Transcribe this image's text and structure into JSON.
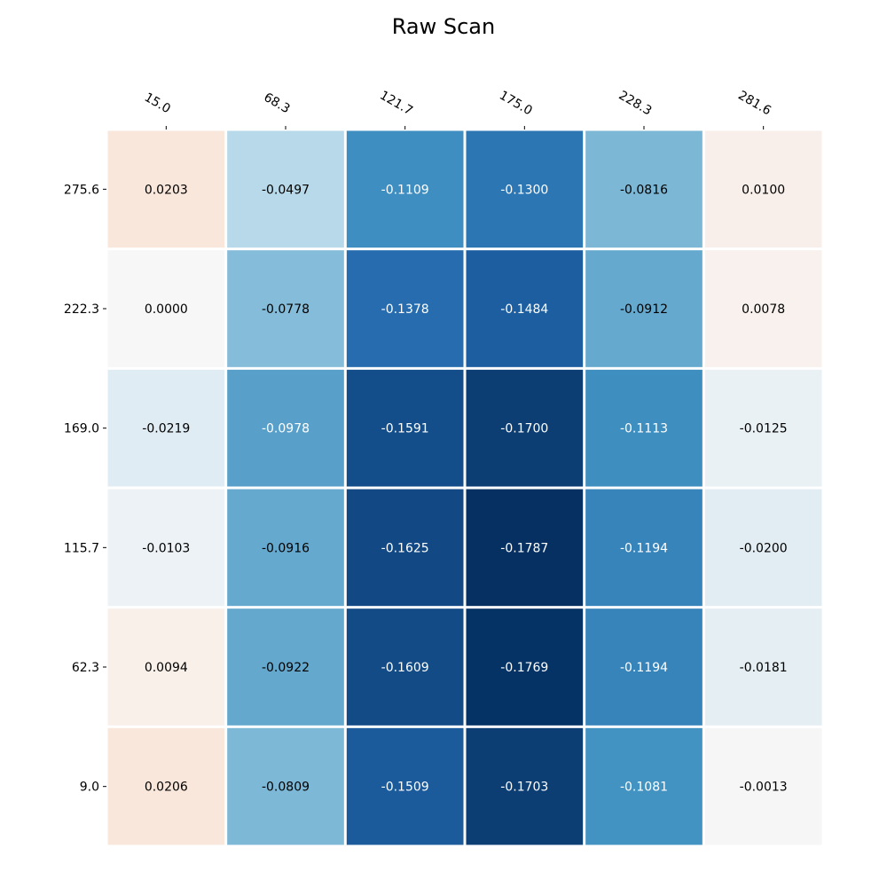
{
  "chart_data": {
    "type": "heatmap",
    "title": "Raw Scan",
    "xlabel": "",
    "ylabel": "",
    "x_ticks": [
      "15.0",
      "68.3",
      "121.7",
      "175.0",
      "228.3",
      "281.6"
    ],
    "y_ticks": [
      "275.6",
      "222.3",
      "169.0",
      "115.7",
      "62.3",
      "9.0"
    ],
    "x_tick_position": "top",
    "y_tick_position": "left",
    "colormap": "RdBu_r",
    "color_range": [
      -0.1787,
      0.1787
    ],
    "colors": {
      "positive_max": "#67001f",
      "zero": "#f7f7f7",
      "negative_max": "#053061"
    },
    "grid": false,
    "values": [
      [
        0.0203,
        -0.0497,
        -0.1109,
        -0.13,
        -0.0816,
        0.01
      ],
      [
        0.0,
        -0.0778,
        -0.1378,
        -0.1484,
        -0.0912,
        0.0078
      ],
      [
        -0.0219,
        -0.0978,
        -0.1591,
        -0.17,
        -0.1113,
        -0.0125
      ],
      [
        -0.0103,
        -0.0916,
        -0.1625,
        -0.1787,
        -0.1194,
        -0.02
      ],
      [
        0.0094,
        -0.0922,
        -0.1609,
        -0.1769,
        -0.1194,
        -0.0181
      ],
      [
        0.0206,
        -0.0809,
        -0.1509,
        -0.1703,
        -0.1081,
        -0.0013
      ]
    ],
    "value_labels": [
      [
        "0.0203",
        "-0.0497",
        "-0.1109",
        "-0.1300",
        "-0.0816",
        "0.0100"
      ],
      [
        "0.0000",
        "-0.0778",
        "-0.1378",
        "-0.1484",
        "-0.0912",
        "0.0078"
      ],
      [
        "-0.0219",
        "-0.0978",
        "-0.1591",
        "-0.1700",
        "-0.1113",
        "-0.0125"
      ],
      [
        "-0.0103",
        "-0.0916",
        "-0.1625",
        "-0.1787",
        "-0.1194",
        "-0.0200"
      ],
      [
        "0.0094",
        "-0.0922",
        "-0.1609",
        "-0.1769",
        "-0.1194",
        "-0.0181"
      ],
      [
        "0.0206",
        "-0.0809",
        "-0.1509",
        "-0.1703",
        "-0.1081",
        "-0.0013"
      ]
    ]
  }
}
